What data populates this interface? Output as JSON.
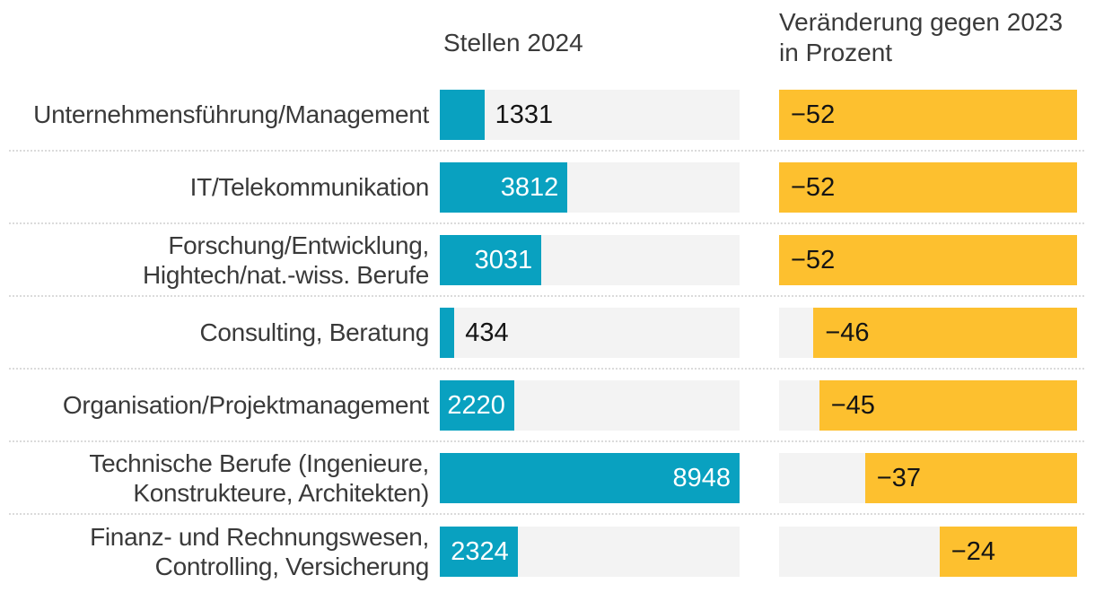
{
  "header": {
    "col1": "Stellen 2024",
    "col2_line1": "Veränderung gegen 2023",
    "col2_line2": "in Prozent"
  },
  "colors": {
    "bar_teal": "#09a1c0",
    "bar_yellow": "#fdc02f",
    "track_gray": "#f3f3f3",
    "label_dark": "#3a3a3a",
    "value_black": "#141414",
    "value_white": "#ffffff",
    "separator": "#dbdbdb"
  },
  "chart_data": {
    "type": "bar",
    "orientation": "horizontal",
    "grid": false,
    "categories": [
      "Unternehmensführung/Management",
      "IT/Telekommunikation",
      "Forschung/Entwicklung, Hightech/nat.-wiss. Berufe",
      "Consulting, Beratung",
      "Organisation/Projektmanagement",
      "Technische Berufe (Ingenieure, Konstrukteure, Architekten)",
      "Finanz- und Rechnungswesen, Controlling, Versicherung"
    ],
    "series": [
      {
        "name": "Stellen 2024",
        "values": [
          1331,
          3812,
          3031,
          434,
          2220,
          8948,
          2324
        ],
        "color": "#09a1c0",
        "axis_max": 8948
      },
      {
        "name": "Veränderung gegen 2023 in Prozent",
        "values": [
          -52,
          -52,
          -52,
          -46,
          -45,
          -37,
          -24
        ],
        "color": "#fdc02f",
        "axis_max": 52
      }
    ],
    "value_labels_shown": true,
    "legend_position": "column headers"
  },
  "rows": [
    {
      "label_lines": [
        "Unternehmensführung/Management"
      ],
      "stellen_label": "1331",
      "change_label": "−52"
    },
    {
      "label_lines": [
        "IT/Telekommunikation"
      ],
      "stellen_label": "3812",
      "change_label": "−52"
    },
    {
      "label_lines": [
        "Forschung/Entwicklung,",
        "Hightech/nat.-wiss. Berufe"
      ],
      "stellen_label": "3031",
      "change_label": "−52"
    },
    {
      "label_lines": [
        "Consulting, Beratung"
      ],
      "stellen_label": "434",
      "change_label": "−46"
    },
    {
      "label_lines": [
        "Organisation/Projektmanagement"
      ],
      "stellen_label": "2220",
      "change_label": "−45"
    },
    {
      "label_lines": [
        "Technische Berufe (Ingenieure,",
        "Konstrukteure, Architekten)"
      ],
      "stellen_label": "8948",
      "change_label": "−37"
    },
    {
      "label_lines": [
        "Finanz- und Rechnungswesen,",
        "Controlling, Versicherung"
      ],
      "stellen_label": "2324",
      "change_label": "−24"
    }
  ]
}
